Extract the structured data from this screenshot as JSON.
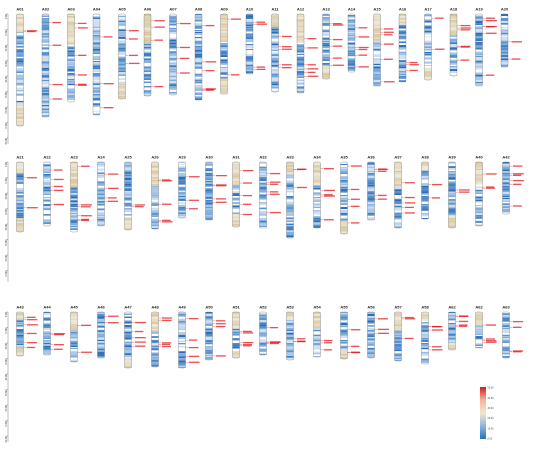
{
  "figure": {
    "type": "chromosome_density_map",
    "rows": [
      [
        "A01",
        "A02",
        "A03",
        "A04",
        "A05",
        "A06",
        "A07",
        "A08",
        "A09",
        "A10",
        "A11",
        "A12",
        "A13",
        "A14",
        "A15",
        "A16",
        "A17",
        "A18",
        "A19",
        "A20"
      ],
      [
        "A21",
        "A22",
        "A23",
        "A24",
        "A25",
        "A26",
        "A29",
        "A30",
        "A31",
        "A32",
        "A33",
        "A34",
        "A35",
        "A36",
        "A37",
        "A38",
        "A39",
        "A40",
        "A42"
      ],
      [
        "A43",
        "A44",
        "A45",
        "A46",
        "A47",
        "A48",
        "A49",
        "A50",
        "A51",
        "A52",
        "A53",
        "A54",
        "A55",
        "A56",
        "A57",
        "A58",
        "A62",
        "A62",
        "A63"
      ]
    ],
    "scale_ticks": [
      "0 Mb",
      "10 Mb",
      "20 Mb",
      "30 Mb",
      "40 Mb",
      "50 Mb",
      "60 Mb",
      "70 Mb",
      "80 Mb"
    ],
    "colorbar": {
      "max_label": "50.00",
      "mid_labels": [
        "40.00",
        "30.00",
        "20.00",
        "10.00"
      ],
      "min_label": "0.00",
      "colors": [
        "#d7191c",
        "#f5b49a",
        "#f2e8cf",
        "#8fb4de",
        "#2b6fb8"
      ]
    },
    "colors": {
      "high": "#d7191c",
      "mid": "#e8dcc0",
      "low": "#2b6fb8",
      "gene_label": "#e0151b"
    }
  }
}
